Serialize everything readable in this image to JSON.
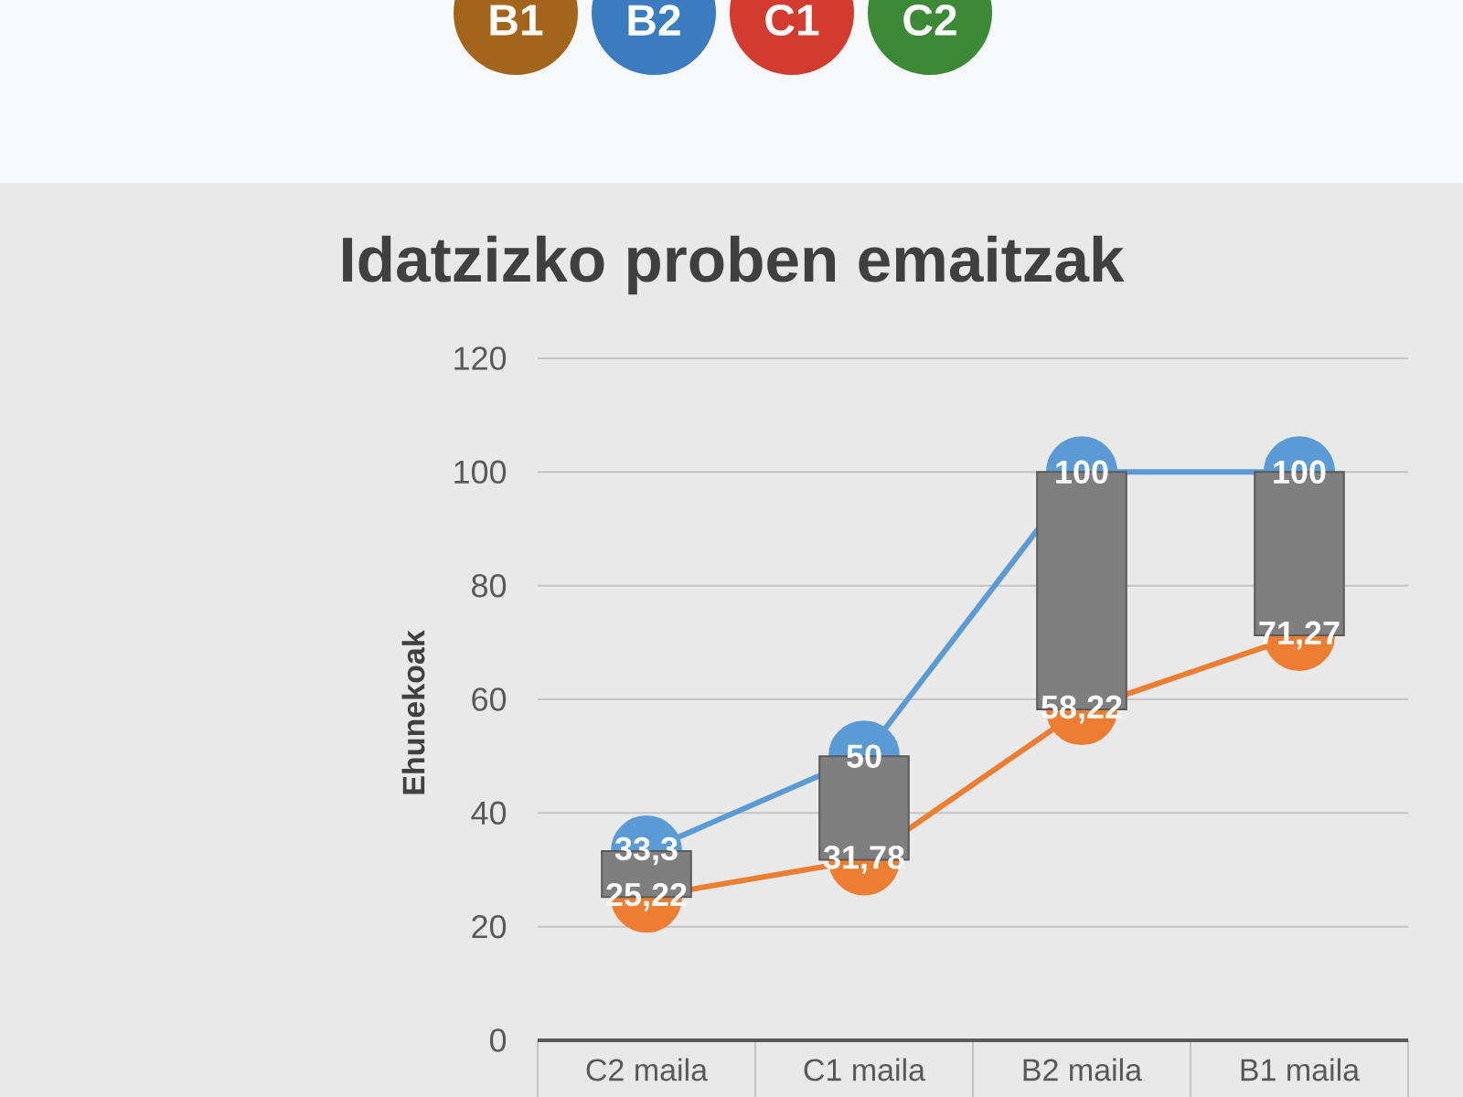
{
  "chart_data": {
    "type": "line",
    "title": "Idatzizko proben emaitzak",
    "ylabel": "Ehunekoak",
    "categories": [
      "C2 maila",
      "C1 maila",
      "B2 maila",
      "B1 maila"
    ],
    "series": [
      {
        "type": "bar",
        "color": "#7f7f7f",
        "base": [
          25.22,
          31.78,
          58.22,
          71.27
        ],
        "values": [
          8.08,
          18.22,
          41.78,
          28.73
        ]
      },
      {
        "color": "#5b9bd5",
        "values": [
          33.3,
          50,
          100,
          100
        ],
        "value_labels": [
          "33,3",
          "50",
          "100",
          "100"
        ]
      },
      {
        "color": "#ed7d31",
        "values": [
          25.22,
          31.78,
          58.22,
          71.27
        ],
        "value_labels": [
          "25,22",
          "31,78",
          "58,22",
          "71,27"
        ]
      }
    ],
    "ylim": [
      0,
      120
    ],
    "yticks": [
      0,
      20,
      40,
      60,
      80,
      100,
      120
    ],
    "grid": "y",
    "marker": "circle",
    "annotations": [
      "B1",
      "B2",
      "C1",
      "C2"
    ]
  }
}
